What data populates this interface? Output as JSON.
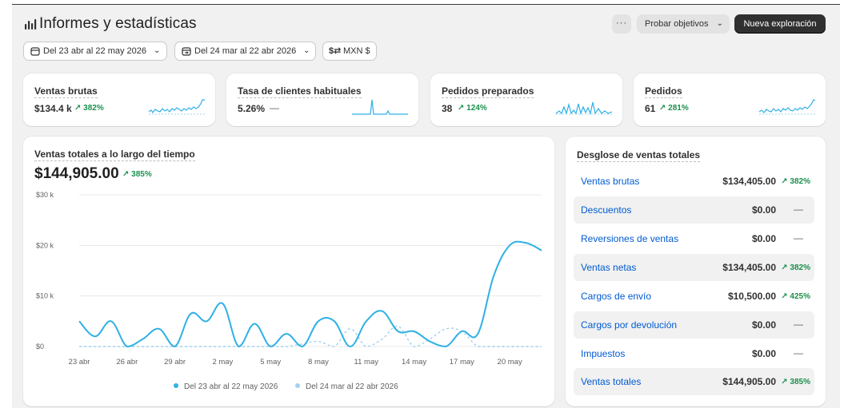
{
  "header": {
    "title": "Informes y estadísticas",
    "more_label": "···",
    "goals_label": "Probar objetivos",
    "new_label": "Nueva exploración"
  },
  "filters": {
    "range": "Del 23 abr al 22 may 2026",
    "compare": "Del 24 mar al 22 abr 2026",
    "currency": "MXN $"
  },
  "kpis": [
    {
      "label": "Ventas brutas",
      "value": "$134.4 k",
      "delta": "↗ 382%"
    },
    {
      "label": "Tasa de clientes habituales",
      "value": "5.26%",
      "delta": "—"
    },
    {
      "label": "Pedidos preparados",
      "value": "38",
      "delta": "↗ 124%"
    },
    {
      "label": "Pedidos",
      "value": "61",
      "delta": "↗ 281%"
    }
  ],
  "main": {
    "label": "Ventas totales a lo largo del tiempo",
    "value": "$144,905.00",
    "delta": "↗ 385%"
  },
  "chart_data": {
    "type": "line",
    "title": "Ventas totales a lo largo del tiempo",
    "xlabel": "",
    "ylabel": "",
    "ylim": [
      0,
      30000
    ],
    "y_ticks": [
      "$30 k",
      "$20 k",
      "$10 k",
      "$0"
    ],
    "x_tick_labels": [
      "23 abr",
      "26 abr",
      "29 abr",
      "2 may",
      "5 may",
      "8 may",
      "11 may",
      "14 may",
      "17 may",
      "20 may"
    ],
    "x": [
      "23 abr",
      "24 abr",
      "25 abr",
      "26 abr",
      "27 abr",
      "28 abr",
      "29 abr",
      "30 abr",
      "1 may",
      "2 may",
      "3 may",
      "4 may",
      "5 may",
      "6 may",
      "7 may",
      "8 may",
      "9 may",
      "10 may",
      "11 may",
      "12 may",
      "13 may",
      "14 may",
      "15 may",
      "16 may",
      "17 may",
      "18 may",
      "19 may",
      "20 may",
      "21 may",
      "22 may"
    ],
    "series": [
      {
        "name": "Del 23 abr al 22 may 2026",
        "color": "#2fb0e6",
        "dashed": false,
        "values": [
          5000,
          2000,
          5000,
          0,
          1500,
          3500,
          0,
          6500,
          5000,
          8500,
          0,
          4500,
          0,
          2500,
          0,
          5000,
          5000,
          0,
          5000,
          7000,
          3000,
          3000,
          1000,
          0,
          3000,
          2500,
          14000,
          20000,
          20500,
          19000
        ]
      },
      {
        "name": "Del 24 mar al 22 abr 2026",
        "color": "#9ed3ee",
        "dashed": true,
        "values": [
          0,
          0,
          0,
          0,
          0,
          0,
          0,
          0,
          0,
          0,
          0,
          0,
          0,
          0,
          500,
          1000,
          0,
          3500,
          0,
          1500,
          4000,
          0,
          1500,
          3500,
          3000,
          0,
          0,
          0,
          0,
          0
        ]
      }
    ],
    "grid": true,
    "legend": "bottom-center"
  },
  "breakdown": {
    "title": "Desglose de ventas totales",
    "rows": [
      {
        "label": "Ventas brutas",
        "value": "$134,405.00",
        "delta": "↗ 382%",
        "dash": ""
      },
      {
        "label": "Descuentos",
        "value": "$0.00",
        "delta": "",
        "dash": "—"
      },
      {
        "label": "Reversiones de ventas",
        "value": "$0.00",
        "delta": "",
        "dash": "—"
      },
      {
        "label": "Ventas netas",
        "value": "$134,405.00",
        "delta": "↗ 382%",
        "dash": ""
      },
      {
        "label": "Cargos de envío",
        "value": "$10,500.00",
        "delta": "↗ 425%",
        "dash": ""
      },
      {
        "label": "Cargos por devolución",
        "value": "$0.00",
        "delta": "",
        "dash": "—"
      },
      {
        "label": "Impuestos",
        "value": "$0.00",
        "delta": "",
        "dash": "—"
      },
      {
        "label": "Ventas totales",
        "value": "$144,905.00",
        "delta": "↗ 385%",
        "dash": ""
      }
    ]
  },
  "colors": {
    "accent_link": "#005bd3",
    "positive": "#1a8f4d",
    "primary_button": "#303030"
  },
  "icons": {
    "title": "bar-chart-icon",
    "calendar": "calendar-icon",
    "compare": "calendar-compare-icon",
    "currency": "currency-exchange-icon"
  }
}
